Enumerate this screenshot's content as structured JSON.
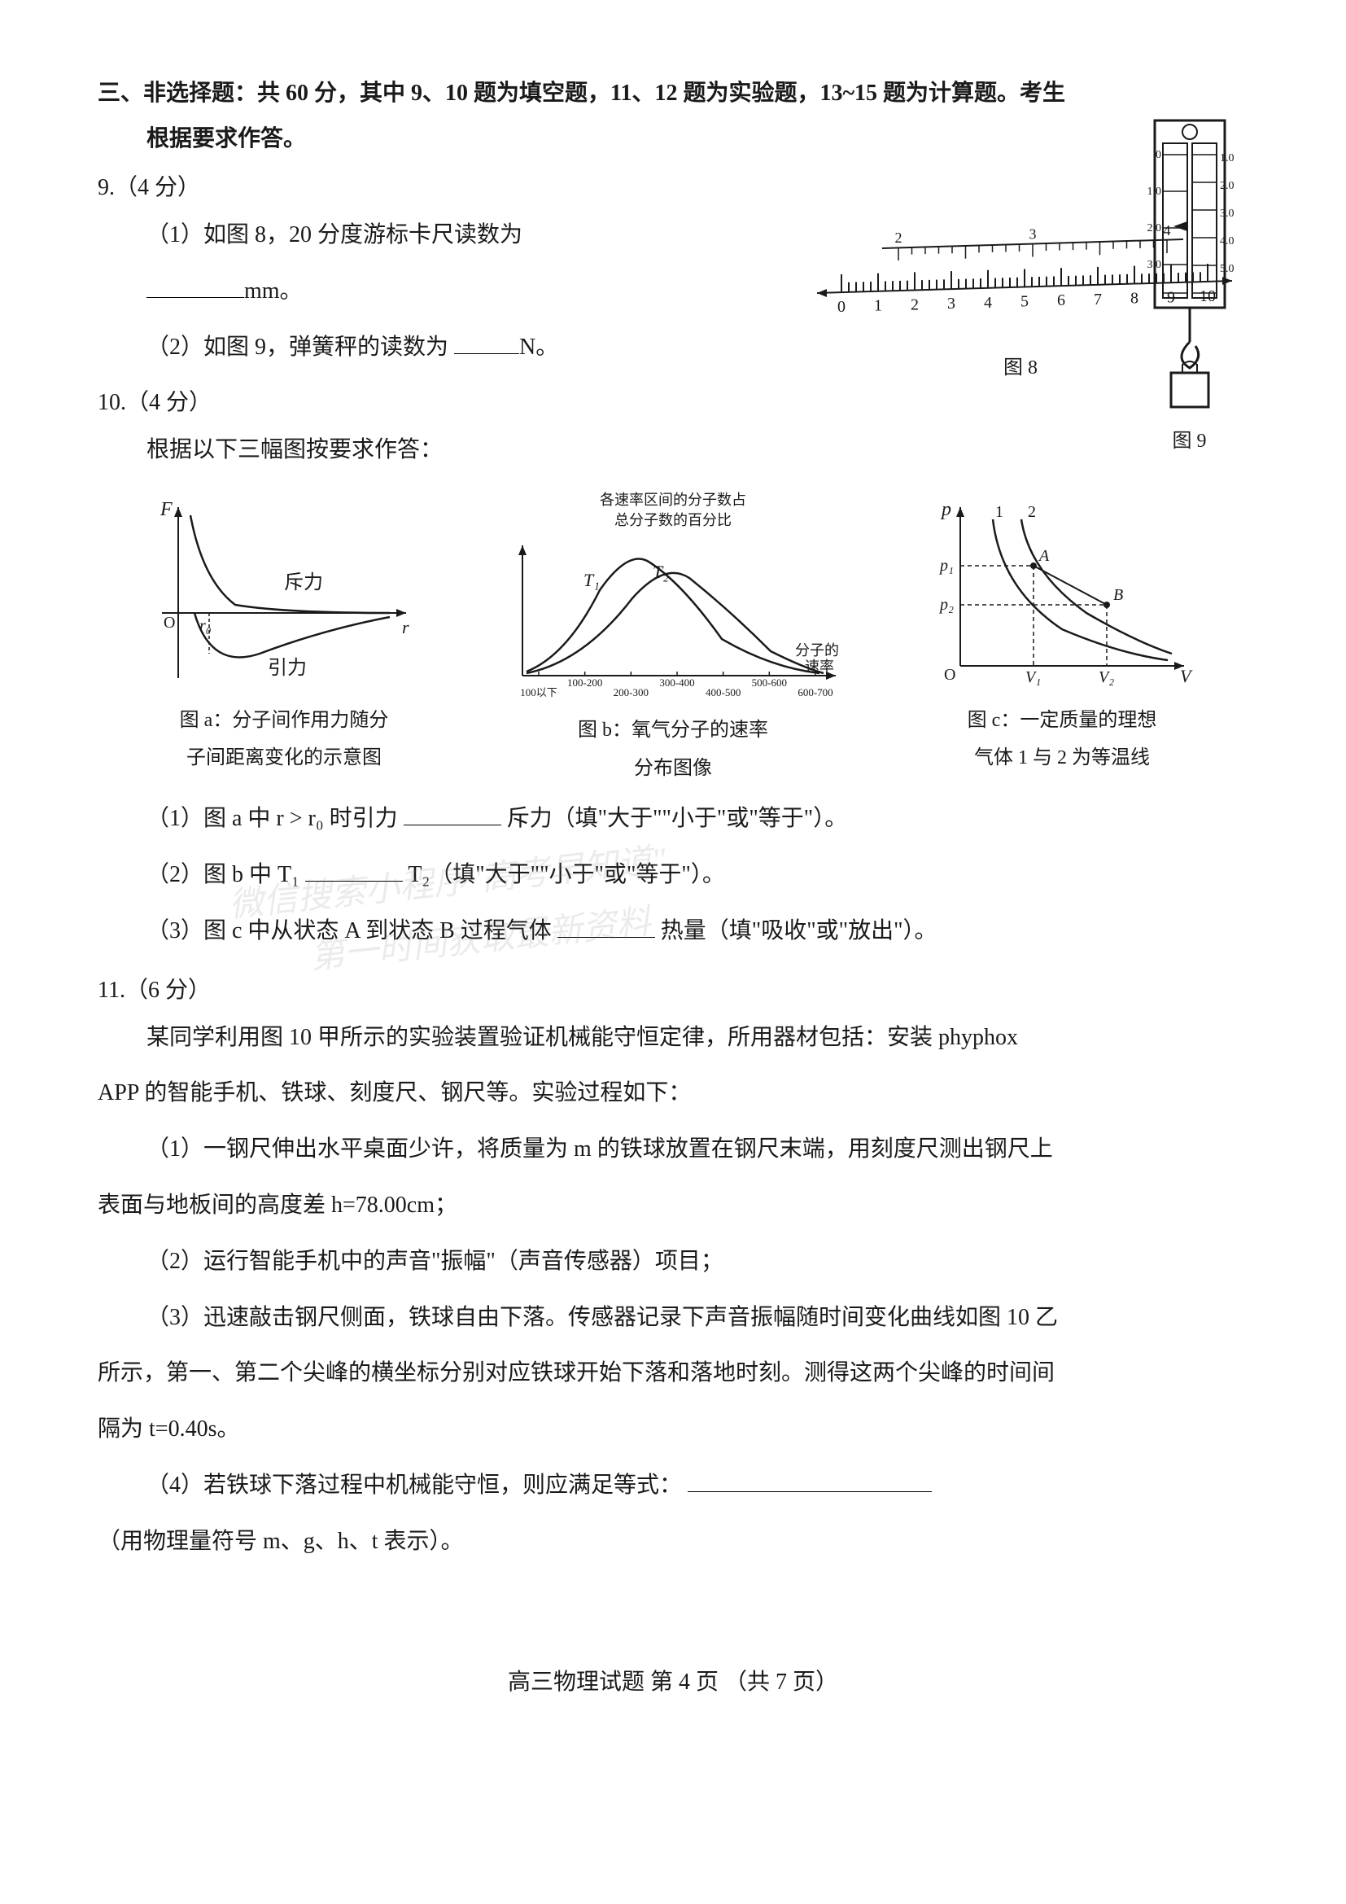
{
  "section": {
    "header_line1": "三、非选择题：共 60 分，其中 9、10 题为填空题，11、12 题为实验题，13~15 题为计算题。考生",
    "header_line2": "根据要求作答。"
  },
  "q9": {
    "num": "9.（4 分）",
    "p1_a": "（1）如图 8，20 分度游标卡尺读数为",
    "p1_unit": "mm。",
    "p2_a": "（2）如图 9，弹簧秤的读数为",
    "p2_unit": "N。",
    "fig8_label": "图 8",
    "fig9_label": "图 9"
  },
  "fig8": {
    "type": "diagram",
    "main_ticks": [
      0,
      1,
      2,
      3,
      4,
      5,
      6,
      7,
      8,
      9,
      10
    ],
    "top_marks": [
      2,
      3,
      4
    ],
    "colors": {
      "stroke": "#1a1a1a",
      "bg": "#ffffff"
    },
    "line_width": 2
  },
  "fig9": {
    "type": "diagram",
    "left_scale": [
      0,
      1,
      2,
      3
    ],
    "right_scale": [
      1,
      2,
      3,
      4,
      5
    ],
    "colors": {
      "stroke": "#1a1a1a",
      "bg": "#ffffff"
    }
  },
  "q10": {
    "num": "10.（4 分）",
    "intro": "根据以下三幅图按要求作答：",
    "figa": {
      "type": "line",
      "yaxis_label": "F",
      "xaxis_label": "r",
      "curve_labels": [
        "斥力",
        "引力"
      ],
      "r0_label": "r₀",
      "origin": "O",
      "colors": {
        "stroke": "#1a1a1a"
      },
      "caption_l1": "图 a：分子间作用力随分",
      "caption_l2": "子间距离变化的示意图"
    },
    "figb": {
      "type": "line",
      "top_label": "各速率区间的分子数占",
      "top_label2": "总分子数的百分比",
      "curve_labels": [
        "T₁",
        "T₂"
      ],
      "xaxis_right": "分子的速率",
      "xticks": [
        "100以下",
        "100-200",
        "200-300",
        "300-400",
        "400-500",
        "500-600",
        "600-700"
      ],
      "colors": {
        "stroke": "#1a1a1a"
      },
      "caption_l1": "图 b：氧气分子的速率",
      "caption_l2": "分布图像"
    },
    "figc": {
      "type": "line",
      "yaxis_label": "p",
      "xaxis_label": "V",
      "origin": "O",
      "points": [
        "A",
        "B"
      ],
      "ylabels": [
        "p₁",
        "p₂"
      ],
      "xlabels": [
        "V₁",
        "V₂"
      ],
      "curve_labels": [
        "1",
        "2"
      ],
      "colors": {
        "stroke": "#1a1a1a"
      },
      "caption_l1": "图 c：一定质量的理想",
      "caption_l2": "气体 1 与 2 为等温线"
    },
    "sub1_a": "（1）图 a 中 r > r₀ 时引力",
    "sub1_b": "斥力（填\"大于\"\"小于\"或\"等于\"）。",
    "sub2_a": "（2）图 b 中 T₁",
    "sub2_b": "T₂（填\"大于\"\"小于\"或\"等于\"）。",
    "sub3_a": "（3）图 c 中从状态 A 到状态 B 过程气体",
    "sub3_b": "热量（填\"吸收\"或\"放出\"）。"
  },
  "q11": {
    "num": "11.（6 分）",
    "intro_a": "某同学利用图 10 甲所示的实验装置验证机械能守恒定律，所用器材包括：安装 phyphox",
    "intro_b": "APP 的智能手机、铁球、刻度尺、钢尺等。实验过程如下：",
    "p1_a": "（1）一钢尺伸出水平桌面少许，将质量为 m 的铁球放置在钢尺末端，用刻度尺测出钢尺上",
    "p1_b": "表面与地板间的高度差 h=78.00cm；",
    "p2": "（2）运行智能手机中的声音\"振幅\"（声音传感器）项目；",
    "p3_a": "（3）迅速敲击钢尺侧面，铁球自由下落。传感器记录下声音振幅随时间变化曲线如图 10 乙",
    "p3_b": "所示，第一、第二个尖峰的横坐标分别对应铁球开始下落和落地时刻。测得这两个尖峰的时间间",
    "p3_c": "隔为 t=0.40s。",
    "p4_a": "（4）若铁球下落过程中机械能守恒，则应满足等式：",
    "p4_b": "（用物理量符号 m、g、h、t 表示）。"
  },
  "footer": "高三物理试题  第 4 页 （共 7 页）",
  "watermark": {
    "line1": "微信搜索小程序\"高考早知道\"",
    "line2": "第一时间获取最新资料"
  },
  "palette": {
    "text": "#1a1a1a",
    "bg": "#ffffff",
    "blank_border": "#000000"
  },
  "typography": {
    "body_pt": 21,
    "caption_pt": 18,
    "font_family": "SimSun"
  }
}
